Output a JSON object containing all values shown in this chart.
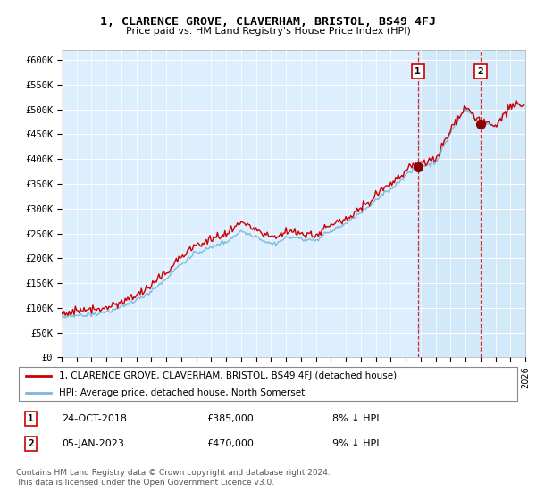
{
  "title": "1, CLARENCE GROVE, CLAVERHAM, BRISTOL, BS49 4FJ",
  "subtitle": "Price paid vs. HM Land Registry's House Price Index (HPI)",
  "ylim": [
    0,
    620000
  ],
  "yticks": [
    0,
    50000,
    100000,
    150000,
    200000,
    250000,
    300000,
    350000,
    400000,
    450000,
    500000,
    550000,
    600000
  ],
  "ytick_labels": [
    "£0",
    "£50K",
    "£100K",
    "£150K",
    "£200K",
    "£250K",
    "£300K",
    "£350K",
    "£400K",
    "£450K",
    "£500K",
    "£550K",
    "£600K"
  ],
  "hpi_color": "#7ab8d9",
  "price_color": "#cc0000",
  "vline_color": "#cc0000",
  "bg_color": "#ddeeff",
  "shade_color": "#d0e8f8",
  "legend_label_price": "1, CLARENCE GROVE, CLAVERHAM, BRISTOL, BS49 4FJ (detached house)",
  "legend_label_hpi": "HPI: Average price, detached house, North Somerset",
  "annotation1_date": "24-OCT-2018",
  "annotation1_price": "£385,000",
  "annotation1_hpi": "8% ↓ HPI",
  "annotation2_date": "05-JAN-2023",
  "annotation2_price": "£470,000",
  "annotation2_hpi": "9% ↓ HPI",
  "footer": "Contains HM Land Registry data © Crown copyright and database right 2024.\nThis data is licensed under the Open Government Licence v3.0.",
  "sale1_year": 2018.82,
  "sale1_y": 385000,
  "sale2_year": 2023.02,
  "sale2_y": 470000,
  "xmin": 1995.0,
  "xmax": 2026.0,
  "hpi_base_annual": [
    [
      1995,
      78000
    ],
    [
      1996,
      83000
    ],
    [
      1997,
      91000
    ],
    [
      1998,
      99000
    ],
    [
      1999,
      112000
    ],
    [
      2000,
      128000
    ],
    [
      2001,
      143000
    ],
    [
      2002,
      170000
    ],
    [
      2003,
      200000
    ],
    [
      2004,
      225000
    ],
    [
      2005,
      232000
    ],
    [
      2006,
      245000
    ],
    [
      2007,
      268000
    ],
    [
      2008,
      258000
    ],
    [
      2009,
      238000
    ],
    [
      2010,
      248000
    ],
    [
      2011,
      248000
    ],
    [
      2012,
      245000
    ],
    [
      2013,
      255000
    ],
    [
      2014,
      273000
    ],
    [
      2015,
      295000
    ],
    [
      2016,
      318000
    ],
    [
      2017,
      345000
    ],
    [
      2018,
      375000
    ],
    [
      2019,
      392000
    ],
    [
      2020,
      398000
    ],
    [
      2021,
      455000
    ],
    [
      2022,
      500000
    ],
    [
      2023,
      470000
    ],
    [
      2024,
      468000
    ],
    [
      2025,
      510000
    ]
  ]
}
